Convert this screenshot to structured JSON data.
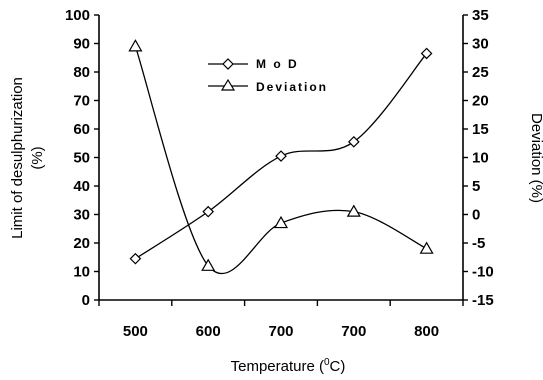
{
  "chart_data": {
    "type": "line",
    "x_categories": [
      "500",
      "600",
      "700",
      "700",
      "800"
    ],
    "xlabel": "Temperature (",
    "xlabel_sup": "0",
    "xlabel_tail": "C)",
    "ylabel_left_line1": "Limit of desulphurization",
    "ylabel_left_line2": "(%)",
    "ylabel_right": "Deviation (%)",
    "y_left": {
      "min": 0,
      "max": 100,
      "step": 10,
      "ticks": [
        "0",
        "10",
        "20",
        "30",
        "40",
        "50",
        "60",
        "70",
        "80",
        "90",
        "100"
      ]
    },
    "y_right": {
      "min": -15,
      "max": 35,
      "step": 5,
      "ticks": [
        "-15",
        "-10",
        "-5",
        "0",
        "5",
        "10",
        "15",
        "20",
        "25",
        "30",
        "35"
      ]
    },
    "legend_position": "top-center",
    "grid": false,
    "series": [
      {
        "name": "M o D",
        "axis": "left",
        "marker": "diamond",
        "values": [
          14.5,
          31,
          50.5,
          55.5,
          86.5
        ]
      },
      {
        "name": "Deviation",
        "axis": "right",
        "marker": "triangle",
        "values": [
          29.5,
          -9,
          -1.5,
          0.5,
          -6
        ]
      }
    ]
  }
}
